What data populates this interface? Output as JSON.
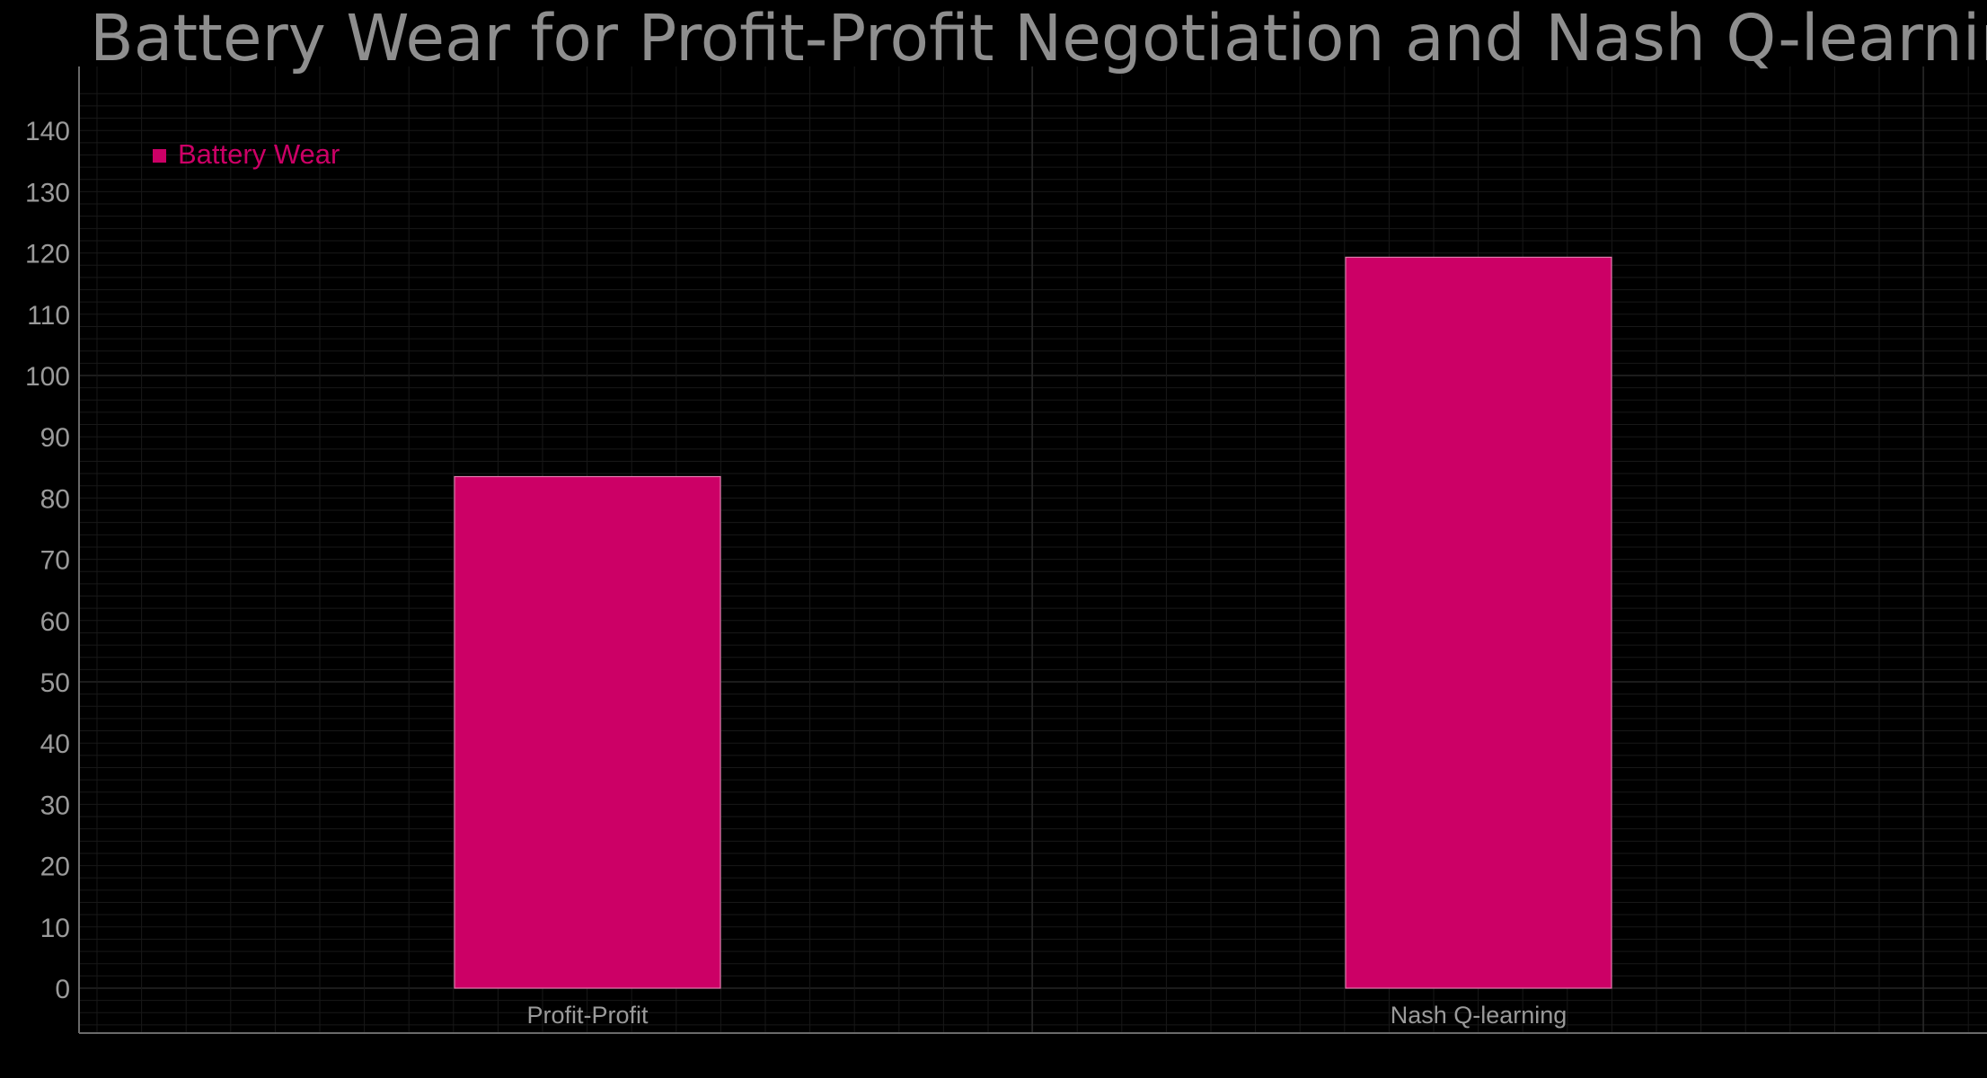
{
  "chart_data": {
    "type": "bar",
    "title": "Battery Wear for Profit-Profit Negotiation and Nash Q-learning [€]",
    "categories": [
      "Profit-Profit",
      "Nash Q-learning"
    ],
    "series": [
      {
        "name": "Battery Wear",
        "values": [
          83.5,
          119.3
        ]
      }
    ],
    "xlabel": "",
    "ylabel": "",
    "ylim": [
      0,
      140
    ],
    "yticks": [
      0,
      10,
      20,
      30,
      40,
      50,
      60,
      70,
      80,
      90,
      100,
      110,
      120,
      130,
      140
    ],
    "grid": true,
    "legend_position": "top-left",
    "colors": {
      "background": "#000000",
      "bar": "#cc0066",
      "legend_text": "#cc0066",
      "text": "#8e8e8e"
    }
  }
}
